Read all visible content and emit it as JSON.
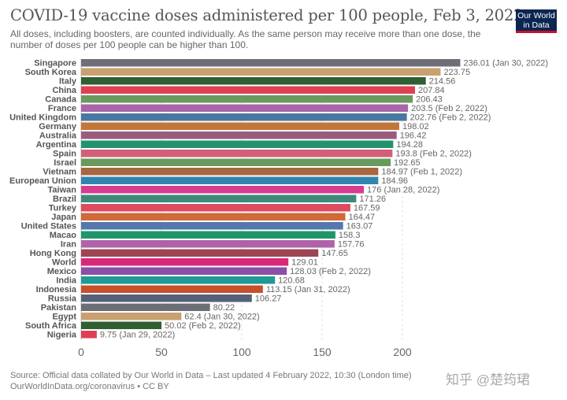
{
  "header": {
    "title": "COVID-19 vaccine doses administered per 100 people, Feb 3, 2022",
    "subtitle": "All doses, including boosters, are counted individually. As the same person may receive more than one dose, the number of doses per 100 people can be higher than 100.",
    "logo": "Our World in Data"
  },
  "chart_data": {
    "type": "bar",
    "orientation": "horizontal",
    "title": "COVID-19 vaccine doses administered per 100 people, Feb 3, 2022",
    "xlim": [
      0,
      240
    ],
    "xticks": [
      "0",
      "50",
      "100",
      "150",
      "200"
    ],
    "grid": true,
    "categories": [
      "Singapore",
      "South Korea",
      "Italy",
      "China",
      "Canada",
      "France",
      "United Kingdom",
      "Germany",
      "Australia",
      "Argentina",
      "Spain",
      "Israel",
      "Vietnam",
      "European Union",
      "Taiwan",
      "Brazil",
      "Turkey",
      "Japan",
      "United States",
      "Macao",
      "Iran",
      "Hong Kong",
      "World",
      "Mexico",
      "India",
      "Indonesia",
      "Russia",
      "Pakistan",
      "Egypt",
      "South Africa",
      "Nigeria"
    ],
    "values": [
      236.01,
      223.75,
      214.56,
      207.84,
      206.43,
      203.5,
      202.76,
      198.02,
      196.42,
      194.28,
      193.8,
      192.65,
      184.97,
      184.96,
      176,
      171.26,
      167.59,
      164.47,
      163.07,
      158.3,
      157.76,
      147.65,
      129.01,
      128.03,
      120.68,
      113.15,
      106.27,
      80.22,
      62.4,
      50.02,
      9.75
    ],
    "labels": [
      "236.01 (Jan 30, 2022)",
      "223.75",
      "214.56",
      "207.84",
      "206.43",
      "203.5 (Feb 2, 2022)",
      "202.76 (Feb 2, 2022)",
      "198.02",
      "196.42",
      "194.28",
      "193.8 (Feb 2, 2022)",
      "192.65",
      "184.97 (Feb 1, 2022)",
      "184.96",
      "176 (Jan 28, 2022)",
      "171.26",
      "167.59",
      "164.47",
      "163.07",
      "158.3",
      "157.76",
      "147.65",
      "129.01",
      "128.03 (Feb 2, 2022)",
      "120.68",
      "113.15 (Jan 31, 2022)",
      "106.27",
      "80.22",
      "62.4 (Jan 30, 2022)",
      "50.02 (Feb 2, 2022)",
      "9.75 (Jan 29, 2022)"
    ],
    "colors": [
      "#6d6e78",
      "#c9a06f",
      "#2f5f33",
      "#de3f53",
      "#6a9a5e",
      "#a865a9",
      "#4a77a0",
      "#c1773a",
      "#9a5c7c",
      "#22936f",
      "#d35e78",
      "#679a5c",
      "#a6663f",
      "#3184ae",
      "#d63c8f",
      "#3d8a7c",
      "#de4a60",
      "#d06a3a",
      "#5577ad",
      "#20956a",
      "#b062a8",
      "#9c4652",
      "#d8287a",
      "#8a4fa6",
      "#1f9a95",
      "#c74f2a",
      "#556079",
      "#6c6e75",
      "#c9a06f",
      "#2f5f33",
      "#de3f53"
    ]
  },
  "footer": {
    "source": "Source: Official data collated by Our World in Data – Last updated 4 February 2022, 10:30 (London time)",
    "url": "OurWorldInData.org/coronavirus • CC BY"
  },
  "watermark": "知乎 @楚筠珺"
}
